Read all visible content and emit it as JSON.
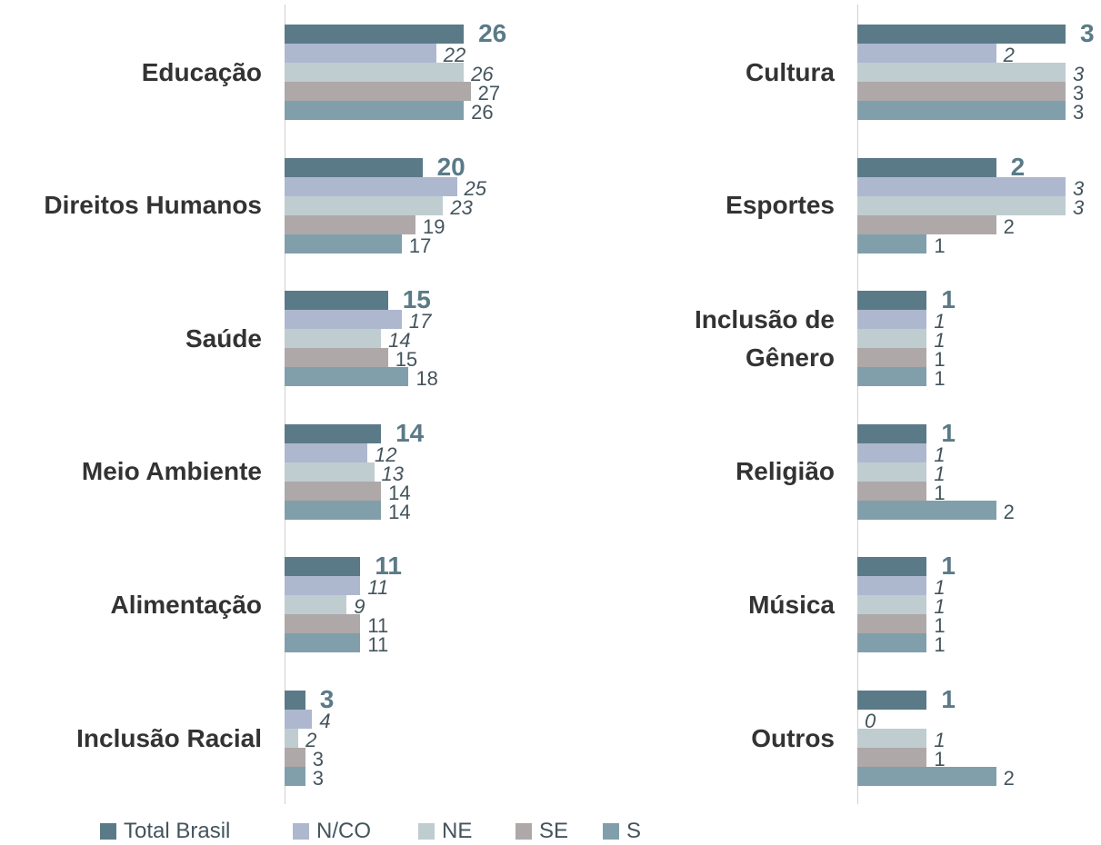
{
  "chart_data": [
    {
      "type": "bar",
      "orientation": "horizontal",
      "categories": [
        "Educação",
        "Direitos Humanos",
        "Saúde",
        "Meio Ambiente",
        "Alimentação",
        "Inclusão Racial"
      ],
      "xlim": [
        0,
        50
      ],
      "series": [
        {
          "name": "Total Brasil",
          "color": "#5b7a87",
          "values": [
            26,
            20,
            15,
            14,
            11,
            3
          ]
        },
        {
          "name": "N/CO",
          "color": "#adb8cf",
          "values": [
            22,
            25,
            17,
            12,
            11,
            4
          ]
        },
        {
          "name": "NE",
          "color": "#bfcdd1",
          "values": [
            26,
            23,
            14,
            13,
            9,
            2
          ]
        },
        {
          "name": "SE",
          "color": "#aea8a8",
          "values": [
            27,
            19,
            15,
            14,
            11,
            3
          ]
        },
        {
          "name": "S",
          "color": "#819fab",
          "values": [
            26,
            17,
            18,
            14,
            11,
            3
          ]
        }
      ]
    },
    {
      "type": "bar",
      "orientation": "horizontal",
      "categories": [
        "Cultura",
        "Esportes",
        "Inclusão de Gênero",
        "Religião",
        "Música",
        "Outros"
      ],
      "xlim": [
        0,
        3
      ],
      "series": [
        {
          "color": "#5b7a87",
          "values": [
            3,
            2,
            1,
            1,
            1,
            1
          ]
        },
        {
          "color": "#adb8cf",
          "values": [
            2,
            3,
            1,
            1,
            1,
            0
          ]
        },
        {
          "color": "#bfcdd1",
          "values": [
            3,
            3,
            1,
            1,
            1,
            1
          ]
        },
        {
          "color": "#aea8a8",
          "values": [
            3,
            2,
            1,
            1,
            1,
            1
          ]
        },
        {
          "color": "#819fab",
          "values": [
            3,
            1,
            1,
            2,
            1,
            2
          ]
        }
      ]
    }
  ]
}
